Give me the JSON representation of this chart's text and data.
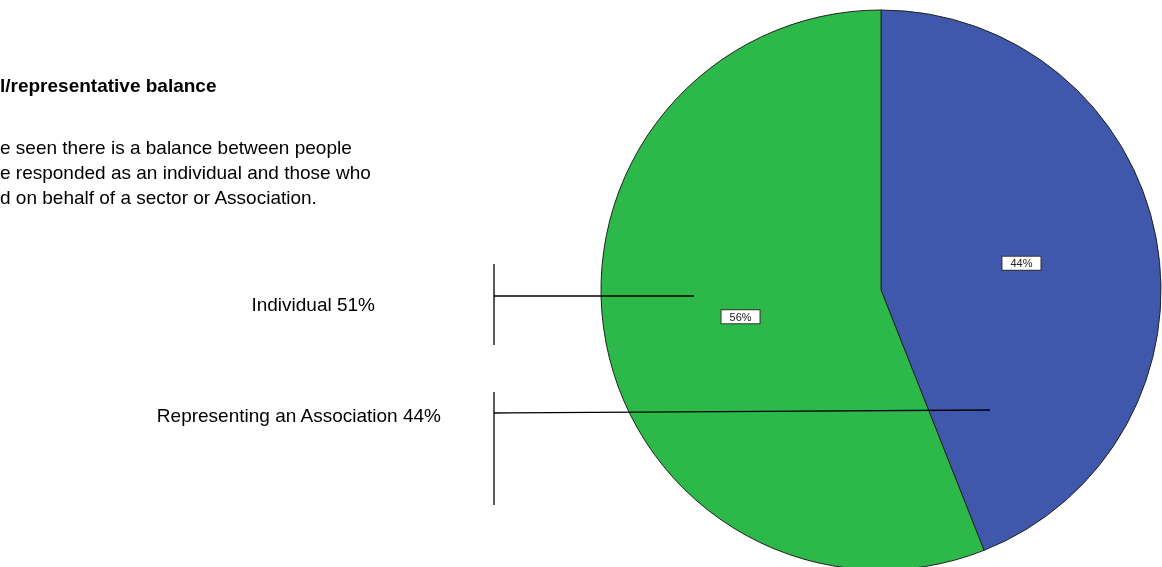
{
  "chart_data": {
    "type": "pie",
    "title": "l/representative balance",
    "categories": [
      null,
      null
    ],
    "values": [
      44,
      56
    ],
    "colors": [
      "#3f58ab",
      "#2db84a"
    ],
    "value_labels": [
      "44%",
      "56%"
    ],
    "annotations": [
      "e seen there is a balance between people",
      "e responded as an individual and those who",
      "d on behalf of a sector or Association.",
      "Individual 51%",
      "Representing an Association 44%"
    ]
  }
}
